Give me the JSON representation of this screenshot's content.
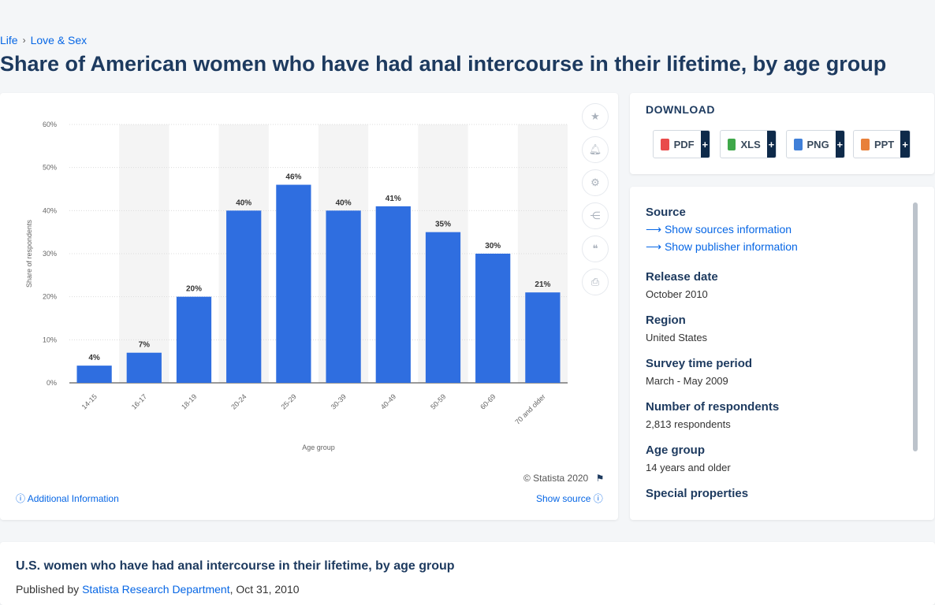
{
  "breadcrumb": {
    "items": [
      "Life",
      "Love & Sex"
    ],
    "separator": "›"
  },
  "page_title": "Share of American women who have had anal intercourse in their lifetime, by age group",
  "chart_data": {
    "type": "bar",
    "categories": [
      "14-15",
      "16-17",
      "18-19",
      "20-24",
      "25-29",
      "30-39",
      "40-49",
      "50-59",
      "60-69",
      "70 and older"
    ],
    "values": [
      4,
      7,
      20,
      40,
      46,
      40,
      41,
      35,
      30,
      21
    ],
    "data_labels": [
      "4%",
      "7%",
      "20%",
      "40%",
      "46%",
      "40%",
      "41%",
      "35%",
      "30%",
      "21%"
    ],
    "xlabel": "Age group",
    "ylabel": "Share of respondents",
    "ylim": [
      0,
      60
    ],
    "yticks": [
      "0%",
      "10%",
      "20%",
      "30%",
      "40%",
      "50%",
      "60%"
    ],
    "grid": true,
    "bar_color": "#2f6ee0",
    "band_color": "#f4f4f4"
  },
  "chart_footer": {
    "copyright": "© Statista 2020",
    "additional_info": "Additional Information",
    "show_source": "Show source"
  },
  "tools": [
    "star-icon",
    "bell-icon",
    "gear-icon",
    "share-icon",
    "quote-icon",
    "print-icon"
  ],
  "download": {
    "title": "DOWNLOAD",
    "buttons": [
      {
        "label": "PDF",
        "color": "#e94b4b"
      },
      {
        "label": "XLS",
        "color": "#3fa84a"
      },
      {
        "label": "PNG",
        "color": "#3f7fd8"
      },
      {
        "label": "PPT",
        "color": "#e8803a"
      }
    ],
    "plus": "+"
  },
  "info": {
    "source_label": "Source",
    "show_sources": "Show sources information",
    "show_publisher": "Show publisher information",
    "release_date_label": "Release date",
    "release_date": "October 2010",
    "region_label": "Region",
    "region": "United States",
    "survey_period_label": "Survey time period",
    "survey_period": "March - May 2009",
    "respondents_label": "Number of respondents",
    "respondents": "2,813 respondents",
    "age_group_label": "Age group",
    "age_group": "14 years and older",
    "special_label": "Special properties"
  },
  "bottom": {
    "title": "U.S. women who have had anal intercourse in their lifetime, by age group",
    "published_by": "Published by",
    "publisher": "Statista Research Department",
    "date": ", Oct 31, 2010"
  }
}
